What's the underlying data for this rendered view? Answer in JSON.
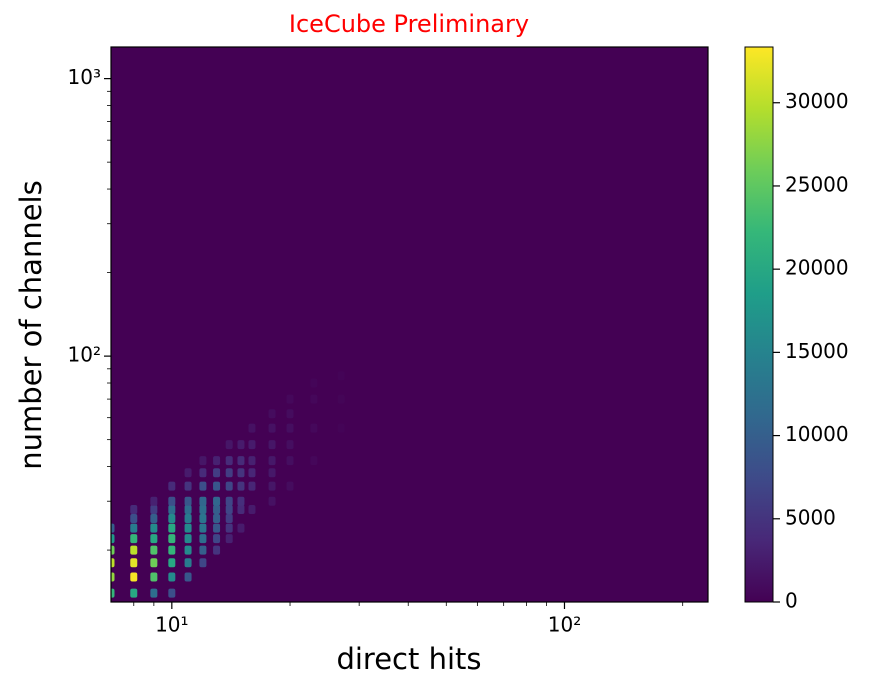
{
  "chart_data": {
    "type": "heatmap",
    "title": "IceCube Preliminary",
    "title_color": "#ff0000",
    "xlabel": "direct hits",
    "ylabel": "number of channels",
    "xscale": "log",
    "yscale": "log",
    "xlim": [
      7,
      232
    ],
    "ylim": [
      13,
      1300
    ],
    "xticks": [
      {
        "value": 10,
        "label": "10¹"
      },
      {
        "value": 100,
        "label": "10²"
      }
    ],
    "yticks": [
      {
        "value": 100,
        "label": "10²"
      },
      {
        "value": 1000,
        "label": "10³"
      }
    ],
    "xminorticks": [
      8,
      9,
      20,
      30,
      40,
      50,
      60,
      70,
      80,
      90,
      200
    ],
    "yminorticks": [
      20,
      30,
      40,
      50,
      60,
      70,
      80,
      90,
      200,
      300,
      400,
      500,
      600,
      700,
      800,
      900
    ],
    "colormap": "viridis",
    "colorbar": {
      "lim": [
        0,
        33350
      ],
      "ticks": [
        0,
        5000,
        10000,
        15000,
        20000,
        25000,
        30000
      ]
    },
    "x": [
      7,
      7,
      7,
      7,
      7,
      7,
      8,
      8,
      8,
      8,
      8,
      8,
      8,
      8,
      9,
      9,
      9,
      9,
      9,
      9,
      9,
      9,
      9,
      10,
      10,
      10,
      10,
      10,
      10,
      10,
      10,
      10,
      10,
      11,
      11,
      11,
      11,
      11,
      11,
      11,
      11,
      11,
      11,
      12,
      12,
      12,
      12,
      12,
      12,
      12,
      12,
      12,
      12,
      13,
      13,
      13,
      13,
      13,
      13,
      13,
      13,
      13,
      14,
      14,
      14,
      14,
      14,
      14,
      14,
      14,
      14,
      15,
      15,
      15,
      15,
      15,
      15,
      15,
      16,
      16,
      16,
      16,
      16,
      16,
      18,
      18,
      18,
      18,
      18,
      18,
      18,
      20,
      20,
      20,
      20,
      20,
      20,
      23,
      23,
      23,
      23,
      27,
      27,
      27
    ],
    "y": [
      14,
      16,
      18,
      20,
      22,
      24,
      14,
      16,
      18,
      20,
      22,
      24,
      26,
      28,
      14,
      16,
      18,
      20,
      22,
      24,
      26,
      28,
      30,
      14,
      16,
      18,
      20,
      22,
      24,
      26,
      28,
      30,
      34,
      16,
      18,
      20,
      22,
      24,
      26,
      28,
      30,
      34,
      38,
      18,
      20,
      22,
      24,
      26,
      28,
      30,
      34,
      38,
      42,
      20,
      22,
      24,
      26,
      28,
      30,
      34,
      38,
      42,
      22,
      24,
      26,
      28,
      30,
      34,
      38,
      42,
      48,
      24,
      28,
      30,
      34,
      38,
      42,
      48,
      28,
      34,
      38,
      42,
      48,
      55,
      30,
      34,
      38,
      42,
      48,
      55,
      62,
      34,
      42,
      48,
      55,
      62,
      70,
      42,
      55,
      70,
      80,
      55,
      70,
      85
    ],
    "values": [
      22000,
      28000,
      30000,
      26000,
      18000,
      10000,
      20000,
      33000,
      32000,
      30000,
      22000,
      14000,
      8000,
      4000,
      12000,
      24000,
      26000,
      24000,
      20000,
      16000,
      10000,
      6000,
      3000,
      8000,
      16000,
      20000,
      22000,
      22000,
      20000,
      16000,
      12000,
      8000,
      4000,
      9000,
      14000,
      16000,
      16000,
      16000,
      14000,
      12000,
      9000,
      5000,
      2500,
      7000,
      10000,
      12000,
      13000,
      13000,
      12000,
      11000,
      8000,
      4000,
      2000,
      5000,
      7000,
      9000,
      10000,
      10000,
      11000,
      9000,
      6000,
      3000,
      3000,
      5000,
      6000,
      7000,
      7000,
      7000,
      6000,
      4000,
      2000,
      2500,
      4000,
      4500,
      5000,
      5000,
      4000,
      2500,
      2500,
      3500,
      3500,
      3000,
      2500,
      1500,
      1500,
      2000,
      2200,
      2200,
      2000,
      1500,
      1000,
      1000,
      1200,
      1200,
      1200,
      1000,
      700,
      600,
      700,
      600,
      400,
      300,
      350,
      300
    ]
  }
}
